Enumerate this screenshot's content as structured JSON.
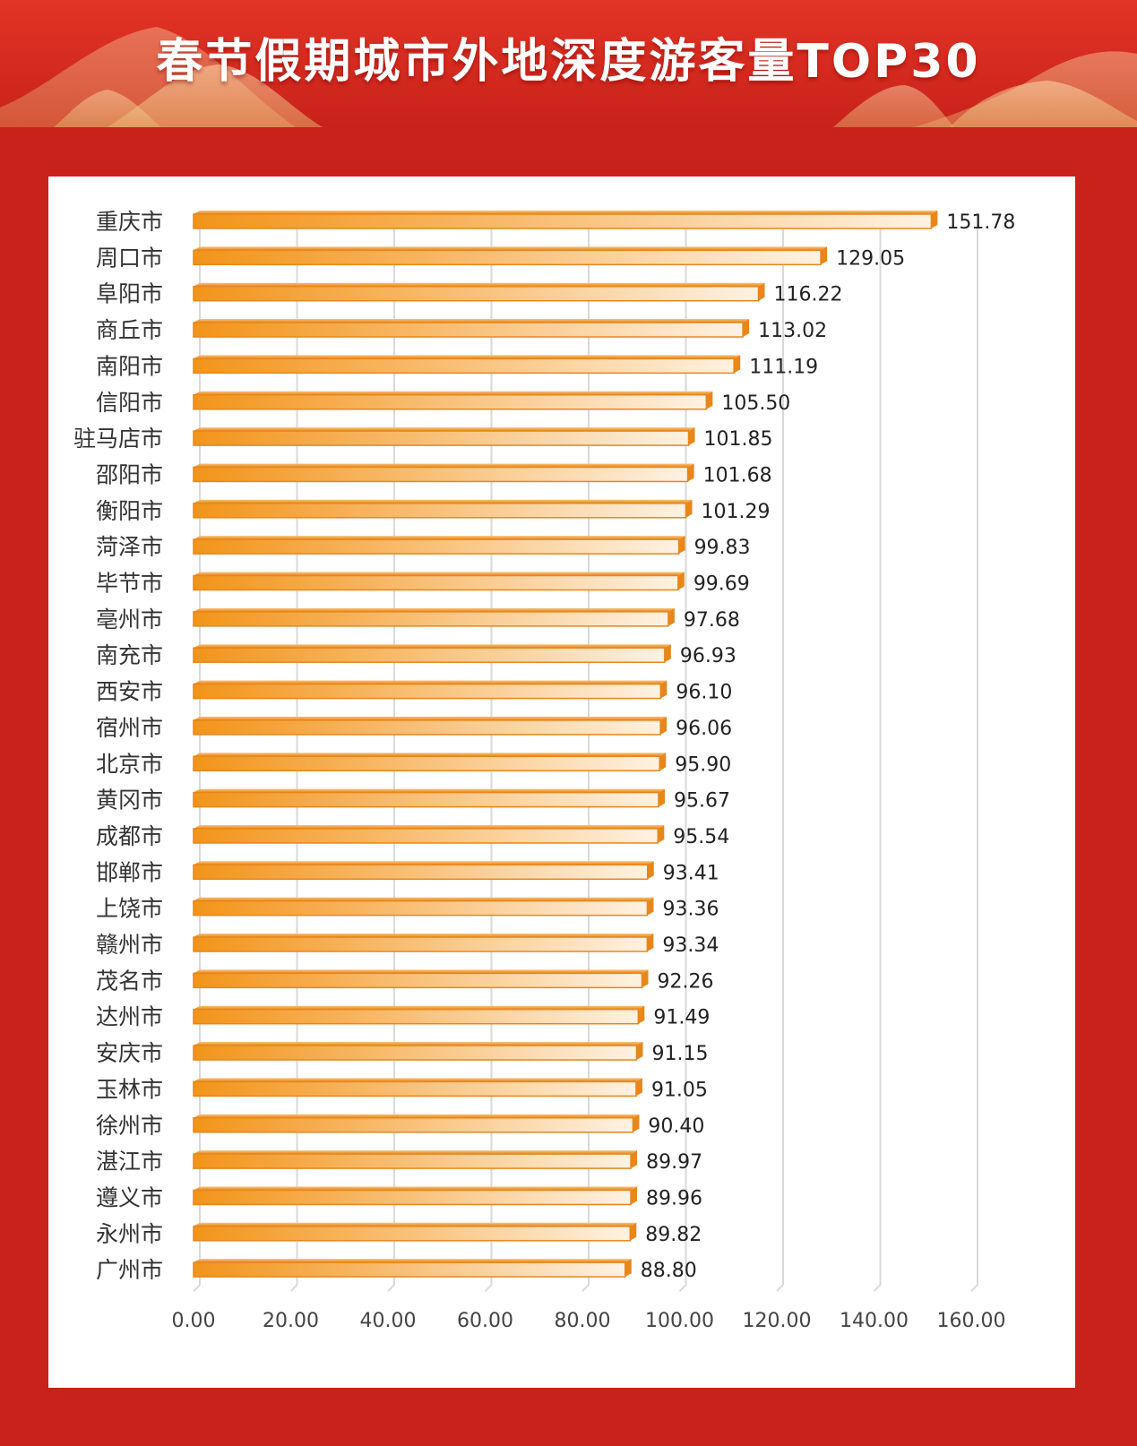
{
  "header": {
    "title": "春节假期城市外地深度游客量TOP30"
  },
  "colors": {
    "background": "#c8221a",
    "bar": "#f29419",
    "bar_light": "#fde3bf",
    "grid": "#d9d9d9"
  },
  "chart_data": {
    "type": "bar",
    "orientation": "horizontal",
    "title": "春节假期城市外地深度游客量TOP30",
    "xlabel": "",
    "ylabel": "",
    "xlim": [
      0,
      160
    ],
    "x_ticks": [
      "0.00",
      "20.00",
      "40.00",
      "60.00",
      "80.00",
      "100.00",
      "120.00",
      "140.00",
      "160.00"
    ],
    "grid": "vertical",
    "categories": [
      "重庆市",
      "周口市",
      "阜阳市",
      "商丘市",
      "南阳市",
      "信阳市",
      "驻马店市",
      "邵阳市",
      "衡阳市",
      "菏泽市",
      "毕节市",
      "亳州市",
      "南充市",
      "西安市",
      "宿州市",
      "北京市",
      "黄冈市",
      "成都市",
      "邯郸市",
      "上饶市",
      "赣州市",
      "茂名市",
      "达州市",
      "安庆市",
      "玉林市",
      "徐州市",
      "湛江市",
      "遵义市",
      "永州市",
      "广州市"
    ],
    "values": [
      151.78,
      129.05,
      116.22,
      113.02,
      111.19,
      105.5,
      101.85,
      101.68,
      101.29,
      99.83,
      99.69,
      97.68,
      96.93,
      96.1,
      96.06,
      95.9,
      95.67,
      95.54,
      93.41,
      93.36,
      93.34,
      92.26,
      91.49,
      91.15,
      91.05,
      90.4,
      89.97,
      89.96,
      89.82,
      88.8
    ],
    "value_labels": [
      "151.78",
      "129.05",
      "116.22",
      "113.02",
      "111.19",
      "105.50",
      "101.85",
      "101.68",
      "101.29",
      "99.83",
      "99.69",
      "97.68",
      "96.93",
      "96.10",
      "96.06",
      "95.90",
      "95.67",
      "95.54",
      "93.41",
      "93.36",
      "93.34",
      "92.26",
      "91.49",
      "91.15",
      "91.05",
      "90.40",
      "89.97",
      "89.96",
      "89.82",
      "88.80"
    ]
  }
}
